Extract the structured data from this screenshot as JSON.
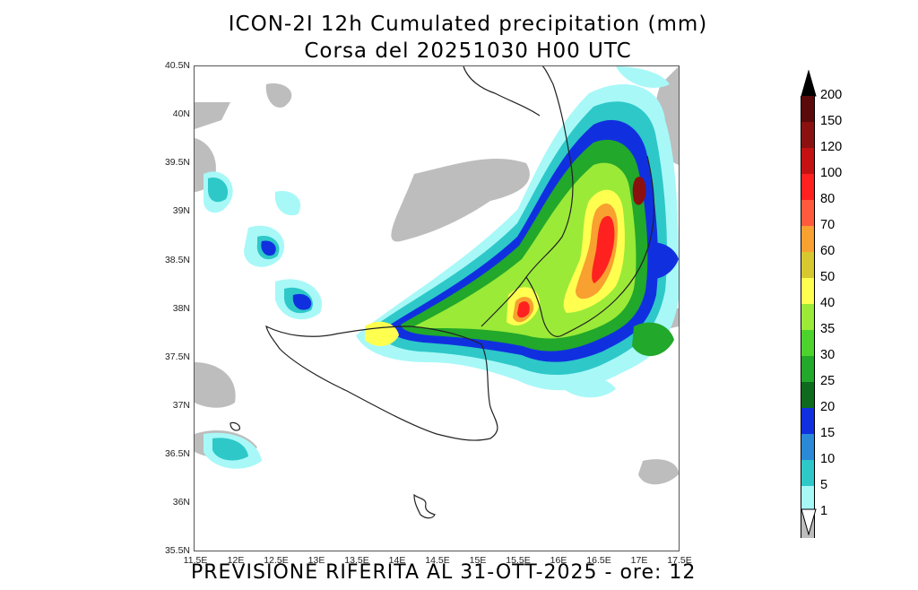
{
  "title_line1": "ICON-2I  12h Cumulated precipitation (mm)",
  "title_line2": "Corsa del 20251030 H00 UTC",
  "footer": "PREVISIONE RIFERITA AL 31-OTT-2025 - ore: 12",
  "lat_labels": [
    "40.5N",
    "40N",
    "39.5N",
    "39N",
    "38.5N",
    "38N",
    "37.5N",
    "37N",
    "36.5N",
    "36N",
    "35.5N"
  ],
  "lon_labels": [
    "11.5E",
    "12E",
    "12.5E",
    "13E",
    "13.5E",
    "14E",
    "14.5E",
    "15E",
    "15.5E",
    "16E",
    "16.5E",
    "17E",
    "17.5E"
  ],
  "colorbar": {
    "labels": [
      "200",
      "150",
      "120",
      "100",
      "80",
      "70",
      "60",
      "50",
      "40",
      "35",
      "30",
      "25",
      "20",
      "15",
      "10",
      "5",
      "1"
    ],
    "colors": [
      "#5a0a0a",
      "#8b1010",
      "#c41212",
      "#ff2020",
      "#ff5a3c",
      "#f8a030",
      "#d8c830",
      "#ffff50",
      "#9bea38",
      "#4cd42c",
      "#22a82a",
      "#0e6a1c",
      "#1030e0",
      "#2a8ad8",
      "#2ec8c8",
      "#a8f8f8",
      "#bdbdbd"
    ]
  }
}
